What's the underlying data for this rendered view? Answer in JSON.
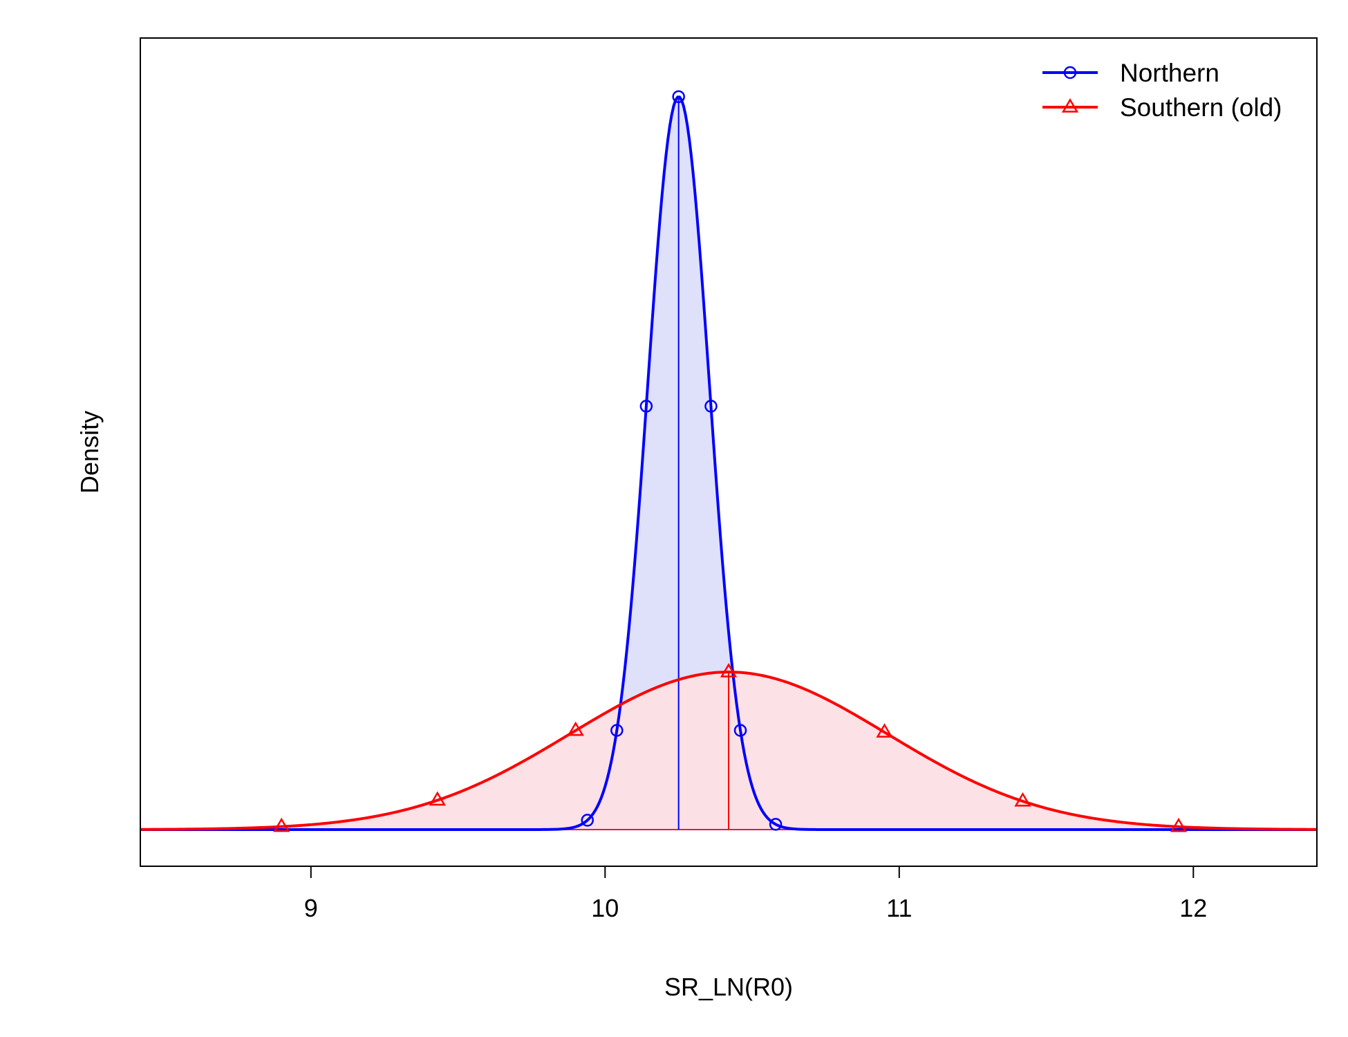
{
  "chart_data": {
    "type": "area",
    "title": "",
    "xlabel": "SR_LN(R0)",
    "ylabel": "Density",
    "xlim": [
      8.42,
      12.42
    ],
    "ylim": [
      -0.05,
      1.08
    ],
    "x_ticks": [
      9,
      10,
      11,
      12
    ],
    "x_tick_labels": [
      "9",
      "10",
      "11",
      "12"
    ],
    "y_ticks_shown": false,
    "grid": false,
    "legend_position": "top-right",
    "series": [
      {
        "name": "Northern",
        "distribution": "normal",
        "mean": 10.25,
        "sd": 0.105,
        "peak_density": 1.0,
        "color": "#0000ff",
        "fill_color": "#e0e3fb",
        "tail_fill_color": "#cbbde9",
        "interval": [
          9.94,
          10.58
        ],
        "marker": "circle",
        "marker_x": [
          9.94,
          10.04,
          10.14,
          10.25,
          10.36,
          10.46,
          10.58
        ],
        "vertical_line_x": 10.25
      },
      {
        "name": "Southern (old)",
        "distribution": "normal",
        "mean": 10.42,
        "sd": 0.54,
        "peak_density": 0.215,
        "color": "#ff0000",
        "fill_color": "#fde2e6",
        "tail_fill_color": "#f7d0d5",
        "interval": [
          8.9,
          11.95
        ],
        "marker": "triangle",
        "marker_x": [
          8.9,
          9.43,
          9.9,
          10.42,
          10.95,
          11.42,
          11.95
        ],
        "vertical_line_x": 10.42
      }
    ]
  }
}
